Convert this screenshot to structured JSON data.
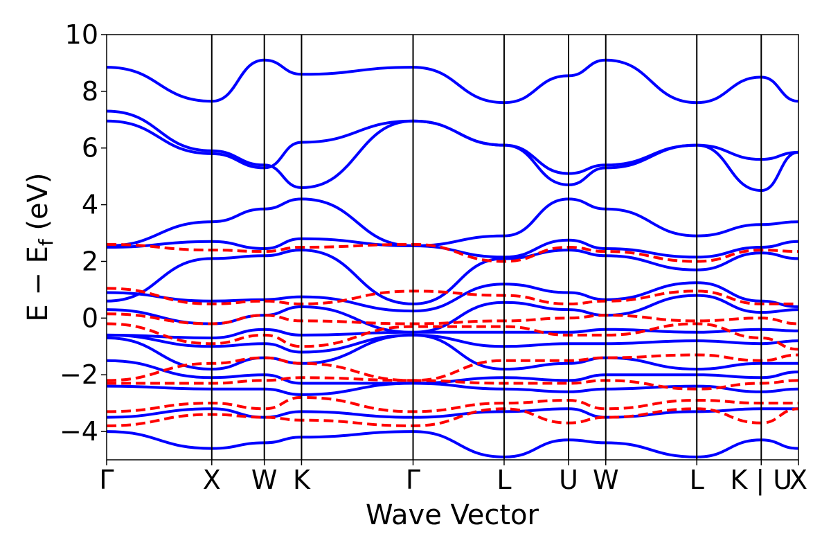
{
  "chart_data": {
    "type": "line",
    "xlabel": "Wave Vector",
    "ylabel": "E − E_f (eV)",
    "ylabel_parts": {
      "main": "E − E",
      "sub": "f",
      "unit": " (eV)"
    },
    "ylim": [
      -5,
      10
    ],
    "yticks": [
      "−4",
      "−2",
      "0",
      "2",
      "4",
      "6",
      "8",
      "10"
    ],
    "ytick_values": [
      -4,
      -2,
      0,
      2,
      4,
      6,
      8,
      10
    ],
    "kpath_labels": [
      "Γ",
      "X",
      "W",
      "K",
      "Γ",
      "L",
      "U",
      "W",
      "L",
      "K | U",
      "X"
    ],
    "kpath_positions": [
      0,
      1.0,
      1.5,
      1.854,
      2.915,
      3.781,
      4.394,
      4.748,
      5.614,
      6.227,
      6.581
    ],
    "grid": false,
    "legend": "none",
    "colors": {
      "dft": "#0000ff",
      "tight_binding": "#ff0000"
    },
    "series": [
      {
        "style": "solid-blue",
        "x": [
          0,
          1,
          1.5,
          1.854,
          2.915,
          3.781,
          4.394,
          4.748,
          5.614,
          6.227,
          6.581
        ],
        "y": [
          8.85,
          7.65,
          9.1,
          8.6,
          8.85,
          7.6,
          8.55,
          9.1,
          7.6,
          8.5,
          7.65
        ]
      },
      {
        "style": "solid-blue",
        "x": [
          0,
          1,
          1.5,
          1.854,
          2.915,
          3.781,
          4.394,
          4.748,
          5.614,
          6.227,
          6.581
        ],
        "y": [
          7.3,
          5.9,
          5.4,
          4.6,
          6.95,
          6.1,
          5.1,
          5.4,
          6.1,
          4.5,
          5.85
        ]
      },
      {
        "style": "solid-blue",
        "x": [
          0,
          1,
          1.5,
          1.854,
          2.915,
          3.781,
          4.394,
          4.748,
          5.614,
          6.227,
          6.581
        ],
        "y": [
          6.95,
          5.8,
          5.3,
          6.2,
          6.95,
          6.1,
          4.7,
          5.3,
          6.1,
          5.6,
          5.85
        ]
      },
      {
        "style": "solid-blue",
        "x": [
          0,
          1,
          1.5,
          1.854,
          2.915,
          3.781,
          4.394,
          4.748,
          5.614,
          6.227,
          6.581
        ],
        "y": [
          2.55,
          3.4,
          3.85,
          4.2,
          2.55,
          2.9,
          4.2,
          3.85,
          2.9,
          3.3,
          3.4
        ]
      },
      {
        "style": "solid-blue",
        "x": [
          0,
          1,
          1.5,
          1.854,
          2.915,
          3.781,
          4.394,
          4.748,
          5.614,
          6.227,
          6.581
        ],
        "y": [
          2.5,
          2.7,
          2.45,
          2.8,
          2.55,
          2.15,
          2.75,
          2.45,
          2.15,
          2.5,
          2.7
        ]
      },
      {
        "style": "solid-blue",
        "x": [
          0,
          1,
          1.5,
          1.854,
          2.915,
          3.781,
          4.394,
          4.748,
          5.614,
          6.227,
          6.581
        ],
        "y": [
          0.6,
          2.1,
          2.2,
          2.4,
          0.5,
          2.1,
          2.4,
          2.2,
          1.7,
          2.3,
          2.1
        ]
      },
      {
        "style": "solid-blue",
        "x": [
          0,
          1,
          1.5,
          1.854,
          2.915,
          3.781,
          4.394,
          4.748,
          5.614,
          6.227,
          6.581
        ],
        "y": [
          0.9,
          0.6,
          0.65,
          0.75,
          0.25,
          1.2,
          0.9,
          0.65,
          1.25,
          0.6,
          0.4
        ]
      },
      {
        "style": "solid-blue",
        "x": [
          0,
          1,
          1.5,
          1.854,
          2.915,
          3.781,
          4.394,
          4.748,
          5.614,
          6.227,
          6.581
        ],
        "y": [
          0.3,
          -0.2,
          0.1,
          0.4,
          -0.5,
          0.55,
          0.3,
          0.1,
          0.8,
          0.2,
          0.3
        ]
      },
      {
        "style": "solid-blue",
        "x": [
          0,
          1,
          1.5,
          1.854,
          2.915,
          3.781,
          4.394,
          4.748,
          5.614,
          6.227,
          6.581
        ],
        "y": [
          -0.6,
          -0.7,
          -0.4,
          -0.6,
          -0.5,
          -0.5,
          -0.5,
          -0.4,
          -0.5,
          -0.4,
          -0.45
        ]
      },
      {
        "style": "solid-blue",
        "x": [
          0,
          1,
          1.5,
          1.854,
          2.915,
          3.781,
          4.394,
          4.748,
          5.614,
          6.227,
          6.581
        ],
        "y": [
          -0.6,
          -1.0,
          -0.9,
          -1.2,
          -0.6,
          -1.0,
          -0.9,
          -0.9,
          -0.8,
          -0.9,
          -0.8
        ]
      },
      {
        "style": "solid-blue",
        "x": [
          0,
          1,
          1.5,
          1.854,
          2.915,
          3.781,
          4.394,
          4.748,
          5.614,
          6.227,
          6.581
        ],
        "y": [
          -0.7,
          -1.8,
          -1.4,
          -1.6,
          -0.6,
          -1.8,
          -1.6,
          -1.4,
          -1.8,
          -1.6,
          -1.6
        ]
      },
      {
        "style": "solid-blue",
        "x": [
          0,
          1,
          1.5,
          1.854,
          2.915,
          3.781,
          4.394,
          4.748,
          5.614,
          6.227,
          6.581
        ],
        "y": [
          -1.5,
          -2.1,
          -2.0,
          -2.3,
          -2.3,
          -2.1,
          -2.2,
          -2.0,
          -2.0,
          -2.1,
          -1.9
        ]
      },
      {
        "style": "solid-blue",
        "x": [
          0,
          1,
          1.5,
          1.854,
          2.915,
          3.781,
          4.394,
          4.748,
          5.614,
          6.227,
          6.581
        ],
        "y": [
          -2.4,
          -2.5,
          -2.5,
          -2.7,
          -2.3,
          -2.5,
          -2.6,
          -2.5,
          -2.4,
          -2.6,
          -2.5
        ]
      },
      {
        "style": "solid-blue",
        "x": [
          0,
          1,
          1.5,
          1.854,
          2.915,
          3.781,
          4.394,
          4.748,
          5.614,
          6.227,
          6.581
        ],
        "y": [
          -3.5,
          -3.2,
          -3.5,
          -3.3,
          -3.5,
          -3.3,
          -3.2,
          -3.5,
          -3.3,
          -3.2,
          -3.2
        ]
      },
      {
        "style": "solid-blue",
        "x": [
          0,
          1,
          1.5,
          1.854,
          2.915,
          3.781,
          4.394,
          4.748,
          5.614,
          6.227,
          6.581
        ],
        "y": [
          -4.0,
          -4.6,
          -4.4,
          -4.2,
          -4.0,
          -4.9,
          -4.3,
          -4.4,
          -4.9,
          -4.3,
          -4.6
        ]
      },
      {
        "style": "dashed-red",
        "x": [
          0,
          1,
          1.5,
          1.854,
          2.915,
          3.781,
          4.394,
          4.748,
          5.614,
          6.227,
          6.581
        ],
        "y": [
          1.05,
          0.5,
          0.6,
          0.5,
          0.95,
          0.8,
          0.5,
          0.6,
          0.95,
          0.5,
          0.5
        ]
      },
      {
        "style": "dashed-red",
        "x": [
          0,
          1,
          1.5,
          1.854,
          2.915,
          3.781,
          4.394,
          4.748,
          5.614,
          6.227,
          6.581
        ],
        "y": [
          0.15,
          -0.2,
          0.1,
          -0.1,
          -0.2,
          -0.1,
          0.0,
          0.1,
          -0.1,
          0.0,
          -0.2
        ]
      },
      {
        "style": "dashed-red",
        "x": [
          0,
          1,
          1.5,
          1.854,
          2.915,
          3.781,
          4.394,
          4.748,
          5.614,
          6.227,
          6.581
        ],
        "y": [
          -0.2,
          -0.9,
          -0.6,
          -1.0,
          -0.3,
          -0.3,
          -0.6,
          -0.6,
          -0.2,
          -0.7,
          -1.1
        ]
      },
      {
        "style": "dashed-red",
        "x": [
          0,
          1,
          1.5,
          1.854,
          2.915,
          3.781,
          4.394,
          4.748,
          5.614,
          6.227,
          6.581
        ],
        "y": [
          -2.2,
          -1.6,
          -1.4,
          -1.6,
          -2.2,
          -1.5,
          -1.5,
          -1.4,
          -1.3,
          -1.5,
          -1.3
        ]
      },
      {
        "style": "dashed-red",
        "x": [
          0,
          1,
          1.5,
          1.854,
          2.915,
          3.781,
          4.394,
          4.748,
          5.614,
          6.227,
          6.581
        ],
        "y": [
          -2.3,
          -2.3,
          -2.2,
          -2.1,
          -2.2,
          -2.3,
          -2.3,
          -2.2,
          -2.5,
          -2.3,
          -2.2
        ]
      },
      {
        "style": "dashed-red",
        "x": [
          0,
          1,
          1.5,
          1.854,
          2.915,
          3.781,
          4.394,
          4.748,
          5.614,
          6.227,
          6.581
        ],
        "y": [
          -3.3,
          -3.0,
          -3.2,
          -2.8,
          -3.3,
          -3.0,
          -2.9,
          -3.2,
          -2.9,
          -3.0,
          -3.0
        ]
      },
      {
        "style": "dashed-red",
        "x": [
          0,
          1,
          1.5,
          1.854,
          2.915,
          3.781,
          4.394,
          4.748,
          5.614,
          6.227,
          6.581
        ],
        "y": [
          -3.8,
          -3.4,
          -3.5,
          -3.6,
          -3.8,
          -3.2,
          -3.7,
          -3.5,
          -3.2,
          -3.7,
          -3.2
        ]
      },
      {
        "style": "dashed-red",
        "x": [
          0,
          1,
          1.5,
          1.854,
          2.915,
          3.781,
          4.394,
          4.748,
          5.614,
          6.227,
          6.581
        ],
        "y": [
          2.6,
          2.4,
          2.35,
          2.5,
          2.6,
          2.0,
          2.5,
          2.35,
          2.0,
          2.4,
          2.35
        ]
      }
    ]
  }
}
